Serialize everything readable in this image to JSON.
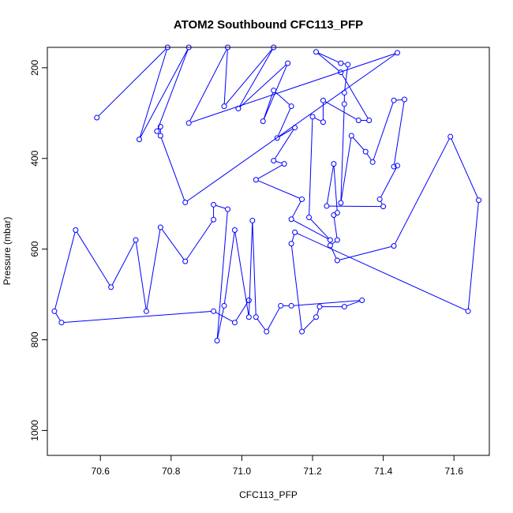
{
  "chart_data": {
    "type": "line",
    "title": "ATOM2 Southbound CFC113_PFP",
    "xlabel": "CFC113_PFP",
    "ylabel": "Pressure (mbar)",
    "xlim": [
      70.45,
      71.7
    ],
    "ylim": [
      1055,
      155
    ],
    "y_inverted": true,
    "x_ticks": [
      70.6,
      70.8,
      71.0,
      71.2,
      71.4,
      71.6
    ],
    "x_tick_labels": [
      "70.6",
      "70.8",
      "71.0",
      "71.2",
      "71.4",
      "71.6"
    ],
    "y_ticks": [
      200,
      400,
      600,
      800,
      1000
    ],
    "y_tick_labels": [
      "200",
      "400",
      "600",
      "800",
      "1000"
    ],
    "grid": false,
    "legend": "none",
    "series": [
      {
        "color": "#0000ff",
        "marker": "open-circle",
        "points": [
          [
            70.59,
            310
          ],
          [
            70.79,
            155
          ],
          [
            70.71,
            358
          ],
          [
            70.85,
            155
          ],
          [
            70.76,
            340
          ],
          [
            70.77,
            330
          ],
          [
            70.77,
            350
          ],
          [
            70.84,
            497
          ],
          [
            71.44,
            167
          ],
          [
            70.85,
            322
          ],
          [
            70.96,
            155
          ],
          [
            70.95,
            285
          ],
          [
            71.09,
            155
          ],
          [
            70.99,
            290
          ],
          [
            71.13,
            190
          ],
          [
            71.06,
            318
          ],
          [
            71.09,
            250
          ],
          [
            71.14,
            285
          ],
          [
            71.1,
            355
          ],
          [
            71.15,
            332
          ],
          [
            71.09,
            405
          ],
          [
            71.12,
            412
          ],
          [
            71.04,
            447
          ],
          [
            71.17,
            490
          ],
          [
            71.14,
            534
          ],
          [
            71.25,
            580
          ],
          [
            71.19,
            530
          ],
          [
            71.2,
            308
          ],
          [
            71.23,
            320
          ],
          [
            71.23,
            272
          ],
          [
            71.33,
            316
          ],
          [
            71.36,
            316
          ],
          [
            71.28,
            210
          ],
          [
            71.21,
            165
          ],
          [
            71.28,
            190
          ],
          [
            71.3,
            193
          ],
          [
            71.29,
            255
          ],
          [
            71.29,
            280
          ],
          [
            71.28,
            498
          ],
          [
            71.31,
            350
          ],
          [
            71.35,
            385
          ],
          [
            71.37,
            408
          ],
          [
            71.43,
            272
          ],
          [
            71.46,
            270
          ],
          [
            71.43,
            418
          ],
          [
            71.44,
            416
          ],
          [
            71.39,
            490
          ],
          [
            71.4,
            506
          ],
          [
            71.24,
            505
          ],
          [
            71.26,
            412
          ],
          [
            71.27,
            520
          ],
          [
            71.26,
            525
          ],
          [
            71.27,
            580
          ],
          [
            71.25,
            592
          ],
          [
            71.27,
            625
          ],
          [
            71.43,
            593
          ],
          [
            71.59,
            352
          ],
          [
            71.67,
            492
          ],
          [
            71.64,
            737
          ],
          [
            71.15,
            563
          ],
          [
            71.14,
            588
          ],
          [
            71.17,
            782
          ],
          [
            71.21,
            750
          ],
          [
            71.22,
            727
          ],
          [
            71.29,
            727
          ],
          [
            71.34,
            713
          ],
          [
            71.14,
            725
          ],
          [
            71.11,
            725
          ],
          [
            71.07,
            782
          ],
          [
            71.04,
            750
          ],
          [
            71.03,
            537
          ],
          [
            71.02,
            750
          ],
          [
            70.98,
            558
          ],
          [
            70.95,
            725
          ],
          [
            70.93,
            802
          ],
          [
            70.96,
            512
          ],
          [
            70.92,
            502
          ],
          [
            70.92,
            535
          ],
          [
            70.84,
            627
          ],
          [
            70.77,
            552
          ],
          [
            70.73,
            737
          ],
          [
            70.7,
            580
          ],
          [
            70.63,
            684
          ],
          [
            70.53,
            558
          ],
          [
            70.47,
            737
          ],
          [
            70.49,
            762
          ],
          [
            70.92,
            737
          ],
          [
            70.98,
            762
          ],
          [
            71.02,
            713
          ]
        ]
      }
    ]
  }
}
